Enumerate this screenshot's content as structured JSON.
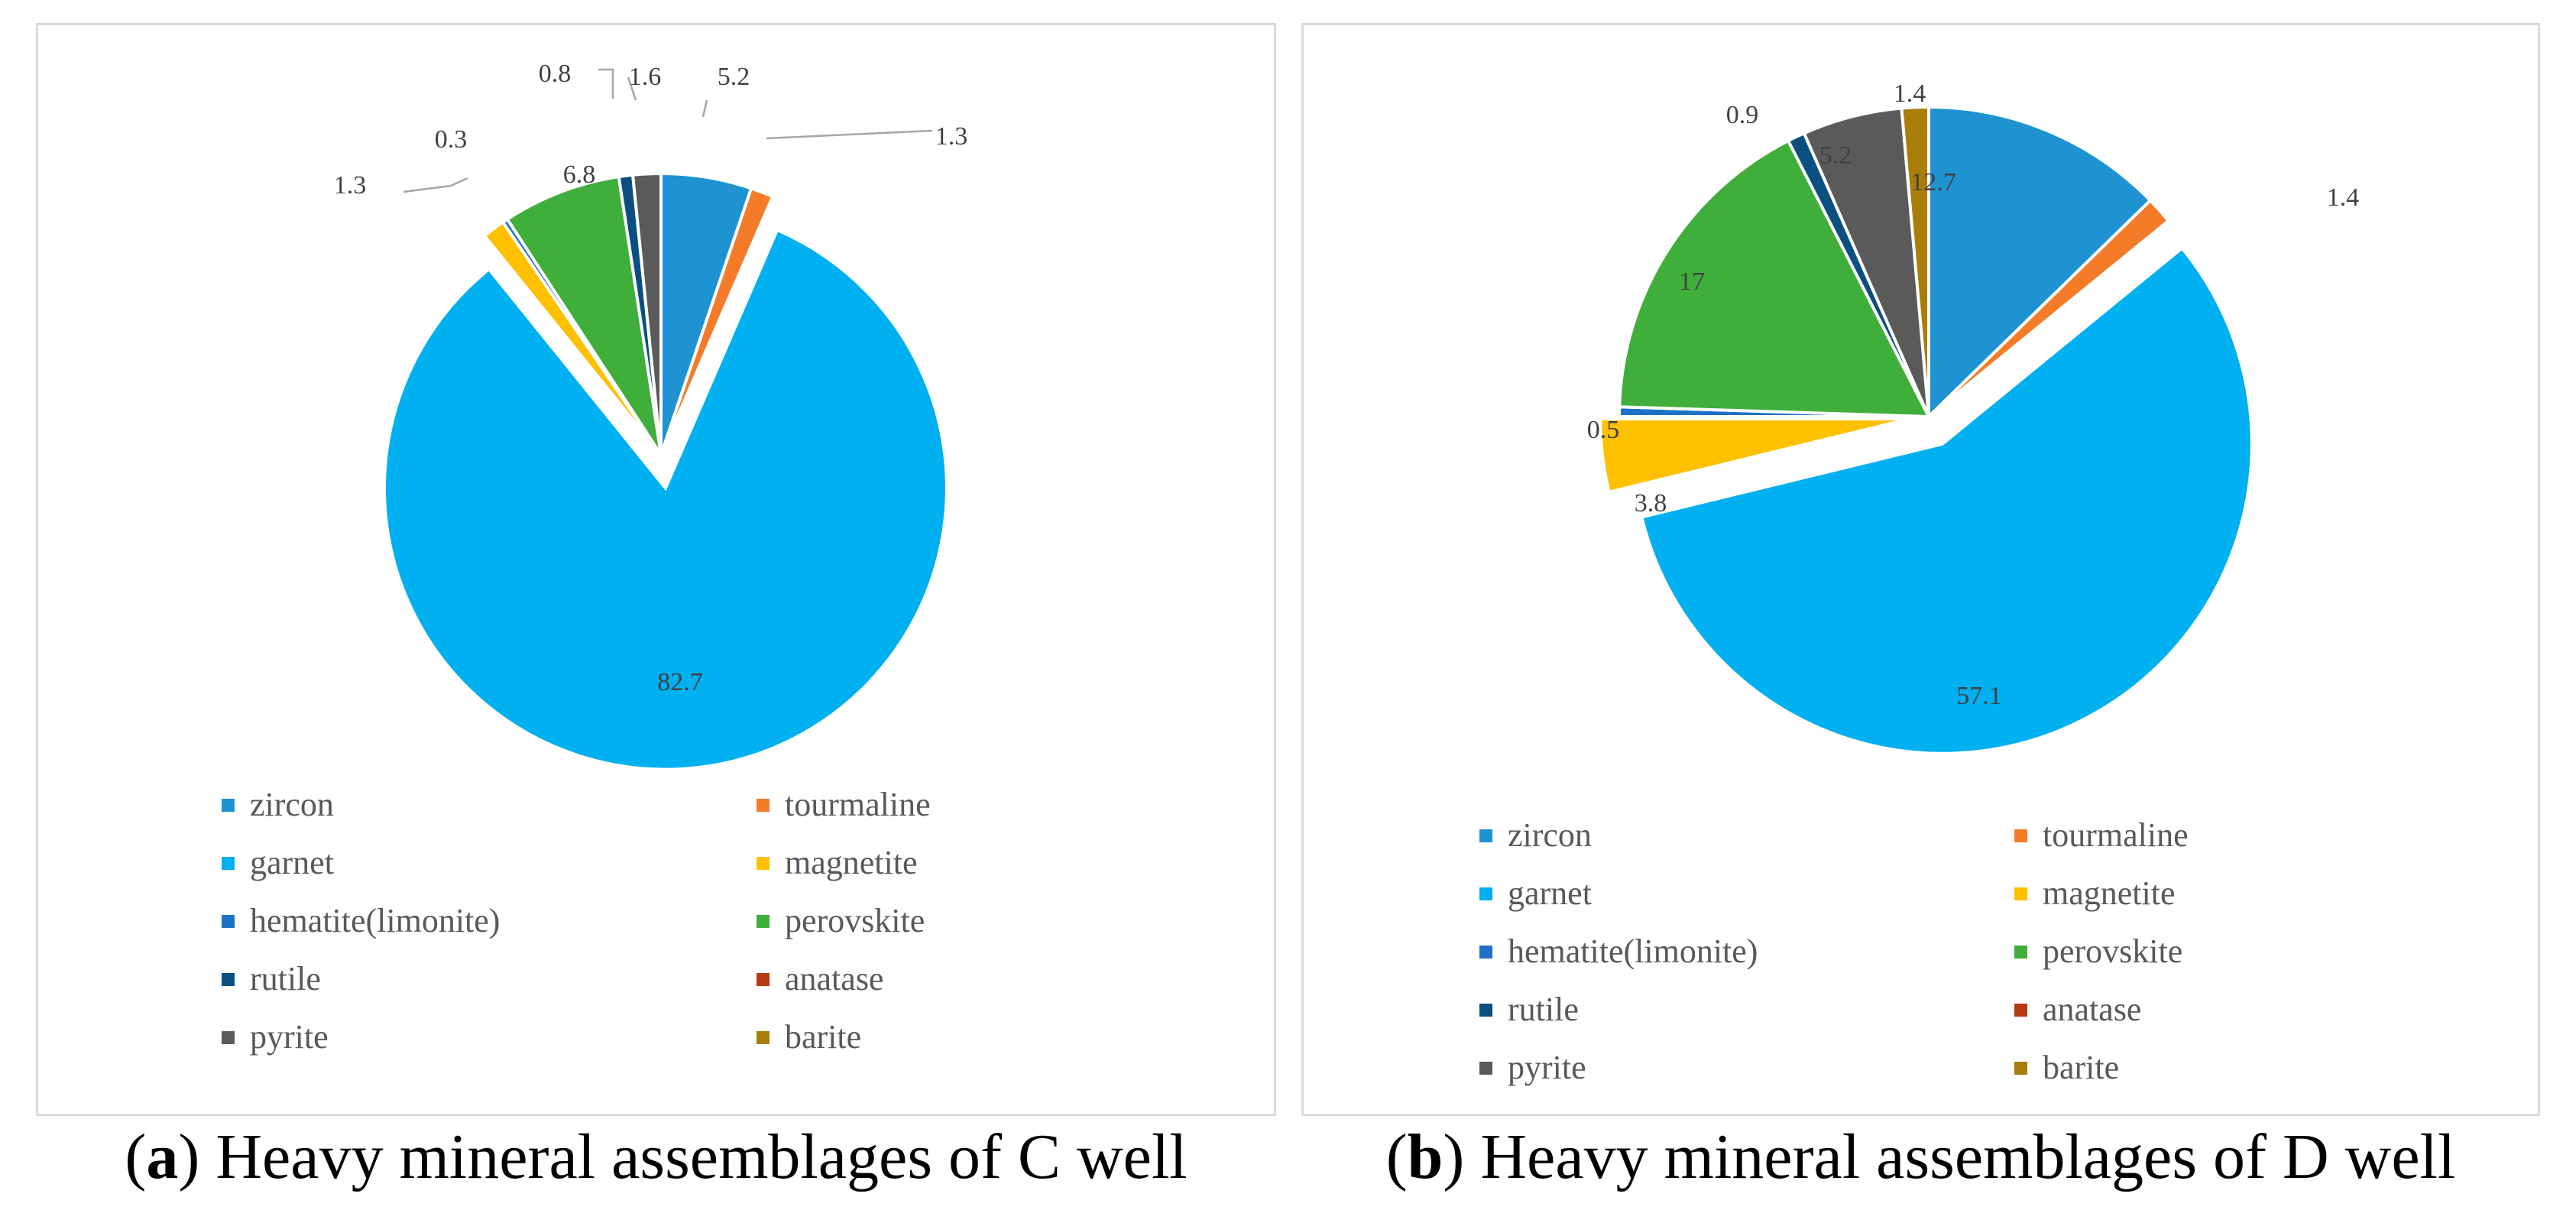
{
  "chart_data": [
    {
      "type": "pie",
      "title": "Heavy mineral assemblages of C well",
      "panel_letter": "a",
      "categories": [
        "zircon",
        "tourmaline",
        "garnet",
        "magnetite",
        "hematite(limonite)",
        "perovskite",
        "rutile",
        "anatase",
        "pyrite",
        "barite"
      ],
      "values": [
        5.2,
        1.3,
        82.7,
        1.3,
        0.3,
        6.8,
        0.8,
        0,
        1.6,
        0
      ],
      "value_labels": [
        "5.2",
        "1.3",
        "82.7",
        "1.3",
        "0.3",
        "6.8",
        "0.8",
        "",
        "1.6",
        ""
      ],
      "colors": [
        "#1f93d1",
        "#f47b27",
        "#00b0f0",
        "#ffc000",
        "#1e72c4",
        "#3fae3a",
        "#0b4f80",
        "#b53a10",
        "#5a5a5a",
        "#a97d0a"
      ],
      "legend_position": "bottom"
    },
    {
      "type": "pie",
      "title": "Heavy mineral assemblages of D well",
      "panel_letter": "b",
      "categories": [
        "zircon",
        "tourmaline",
        "garnet",
        "magnetite",
        "hematite(limonite)",
        "perovskite",
        "rutile",
        "anatase",
        "pyrite",
        "barite"
      ],
      "values": [
        12.7,
        1.4,
        57.1,
        3.8,
        0.5,
        17,
        0.9,
        0,
        5.2,
        1.4
      ],
      "value_labels": [
        "12.7",
        "1.4",
        "57.1",
        "3.8",
        "0.5",
        "17",
        "0.9",
        "",
        "5.2",
        "1.4"
      ],
      "colors": [
        "#1f93d1",
        "#f47b27",
        "#00b0f0",
        "#ffc000",
        "#1e72c4",
        "#3fae3a",
        "#0b4f80",
        "#b53a10",
        "#5a5a5a",
        "#a97d0a"
      ],
      "legend_position": "bottom"
    }
  ],
  "captions": [
    {
      "letter": "a",
      "text": " Heavy mineral assemblages of C well"
    },
    {
      "letter": "b",
      "text": " Heavy mineral assemblages of D well"
    }
  ]
}
